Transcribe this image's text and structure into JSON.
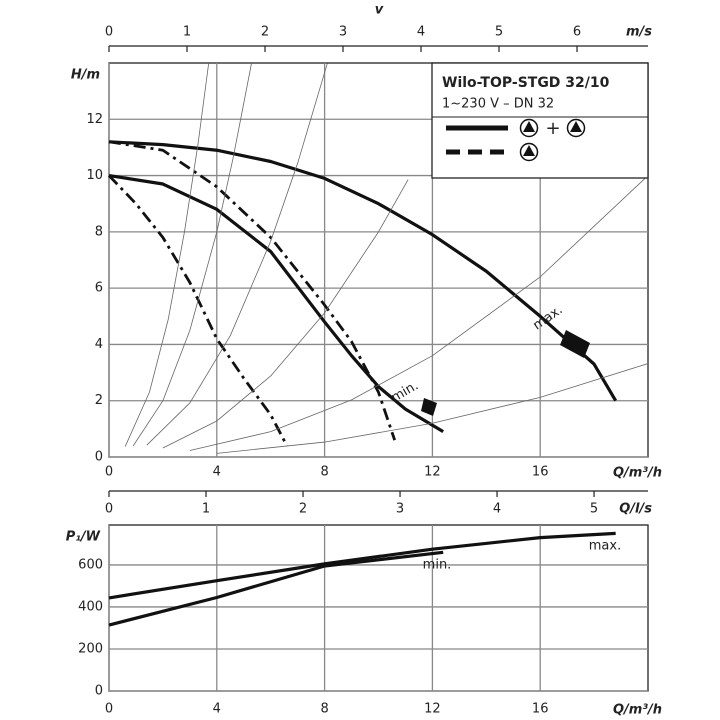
{
  "chart_data": [
    {
      "type": "line",
      "x2title": "v",
      "x2label": "m/s",
      "x2lim": [
        0,
        6.91
      ],
      "x2ticks": [
        0,
        1,
        2,
        3,
        4,
        5,
        6
      ],
      "xlabel": "Q/m³/h",
      "ylabel": "H/m",
      "xlim": [
        0,
        20
      ],
      "xticks": [
        0,
        4,
        8,
        12,
        16
      ],
      "ylim": [
        0,
        14
      ],
      "yticks": [
        0,
        2,
        4,
        6,
        8,
        10,
        12
      ],
      "grid": true,
      "legend": {
        "title": "Wilo-TOP-STGD 32/10",
        "subtitle": "1~230 V – DN 32",
        "plus": "+"
      },
      "annotations": [
        "max.",
        "min."
      ],
      "series": [
        {
          "style": "solid",
          "color": "#111",
          "x": [
            0,
            2,
            4,
            6,
            8,
            10,
            12,
            14,
            16,
            18,
            18.8
          ],
          "values": [
            11.2,
            11.1,
            10.9,
            10.5,
            9.9,
            9.0,
            7.9,
            6.6,
            5.0,
            3.3,
            2.0
          ]
        },
        {
          "style": "solid",
          "color": "#111",
          "x": [
            0,
            2,
            4,
            6,
            8,
            9,
            10,
            11,
            12.4
          ],
          "values": [
            10,
            9.7,
            8.8,
            7.3,
            4.8,
            3.6,
            2.5,
            1.7,
            0.9
          ]
        },
        {
          "style": "dashdot",
          "color": "#111",
          "x": [
            0,
            2,
            4,
            6,
            8,
            9,
            10,
            10.6
          ],
          "values": [
            11.2,
            10.9,
            9.6,
            7.8,
            5.4,
            4.1,
            2.3,
            0.6
          ]
        },
        {
          "style": "dashdot",
          "color": "#111",
          "x": [
            0,
            1,
            2,
            3,
            4,
            5,
            6,
            6.6
          ],
          "values": [
            10,
            9.0,
            7.8,
            6.2,
            4.2,
            2.8,
            1.5,
            0.4
          ]
        },
        {
          "style": "thin",
          "color": "#666",
          "x": [
            0.6,
            1.5,
            2.2,
            2.8,
            3.3,
            3.7
          ],
          "values": [
            0.37,
            2.3,
            4.9,
            8.0,
            11.1,
            14.0
          ]
        },
        {
          "style": "thin",
          "color": "#666",
          "x": [
            0.9,
            2,
            3,
            4,
            4.6,
            5.29
          ],
          "values": [
            0.4,
            2,
            4.5,
            8,
            10.6,
            14.0
          ]
        },
        {
          "style": "thin",
          "color": "#666",
          "x": [
            1.4,
            3,
            4.5,
            6,
            7,
            8.1
          ],
          "values": [
            0.42,
            1.92,
            4.31,
            7.67,
            10.44,
            13.98
          ]
        },
        {
          "style": "thin",
          "color": "#666",
          "x": [
            2,
            4,
            6,
            8,
            10,
            11.1
          ],
          "values": [
            0.32,
            1.28,
            2.88,
            5.12,
            8.0,
            9.86
          ]
        },
        {
          "style": "thin",
          "color": "#666",
          "x": [
            3,
            6,
            9,
            12,
            16,
            20
          ],
          "values": [
            0.23,
            0.9,
            2.03,
            3.6,
            6.4,
            10.0
          ]
        },
        {
          "style": "thin",
          "color": "#666",
          "x": [
            4,
            8,
            12,
            16,
            20
          ],
          "values": [
            0.13,
            0.53,
            1.2,
            2.12,
            3.32
          ]
        }
      ]
    },
    {
      "type": "line",
      "x2label": "Q/l/s",
      "x2lim": [
        0,
        5.556
      ],
      "x2ticks": [
        0,
        1,
        2,
        3,
        4,
        5
      ],
      "xlabel": "Q/m³/h",
      "ylabel": "P₁/W",
      "xlim": [
        0,
        20
      ],
      "xticks": [
        0,
        4,
        8,
        12,
        16
      ],
      "ylim": [
        0,
        790
      ],
      "yticks": [
        0,
        200,
        400,
        600
      ],
      "grid": true,
      "annotations": [
        "max.",
        "min."
      ],
      "series": [
        {
          "style": "solid",
          "color": "#111",
          "x": [
            0,
            4,
            8,
            12,
            16,
            18.8
          ],
          "values": [
            443,
            525,
            605,
            675,
            730,
            750
          ]
        },
        {
          "style": "solid",
          "color": "#111",
          "x": [
            0,
            4,
            8,
            12.4
          ],
          "values": [
            314,
            445,
            595,
            660
          ]
        }
      ]
    }
  ]
}
